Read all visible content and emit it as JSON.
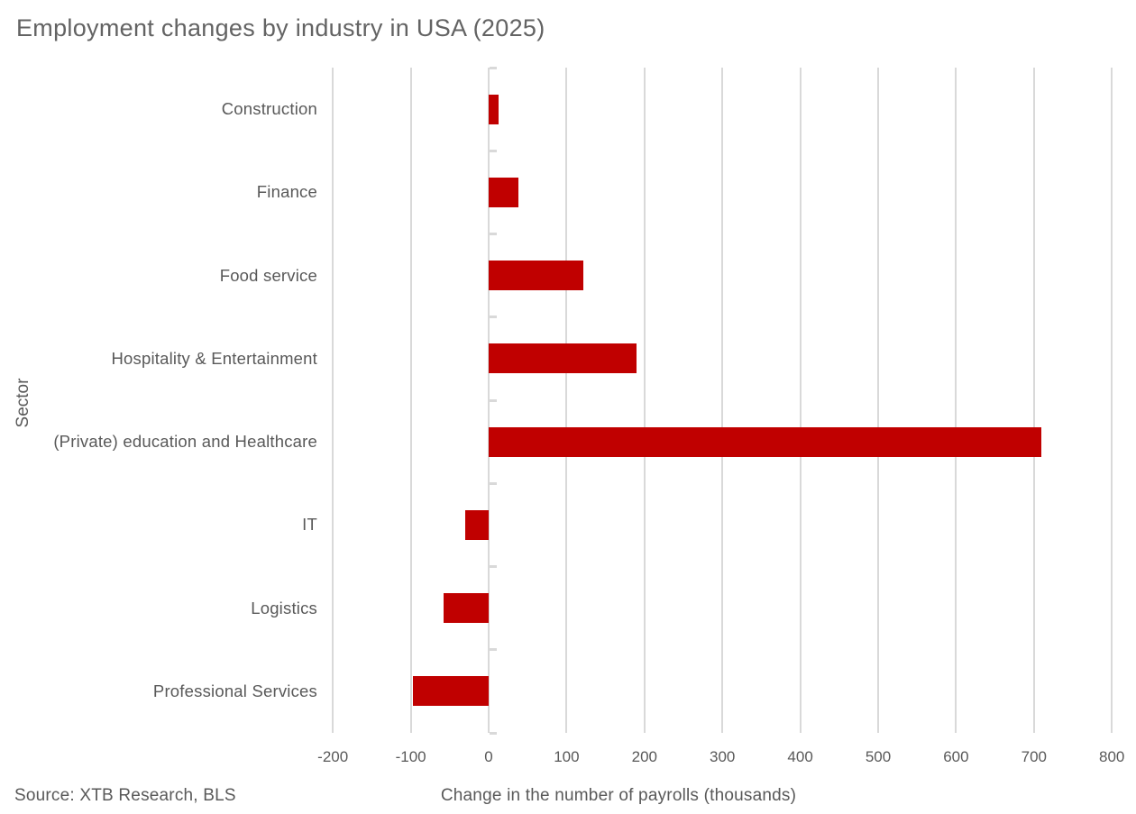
{
  "page": {
    "source": "Source: XTB Research, BLS"
  },
  "chart_data": {
    "type": "bar",
    "orientation": "horizontal",
    "title": "Employment changes by industry in USA (2025)",
    "categories": [
      "Construction",
      "Finance",
      "Food service",
      "Hospitality & Entertainment",
      "(Private) education and Healthcare",
      "IT",
      "Logistics",
      "Professional Services"
    ],
    "values": [
      13,
      38,
      122,
      190,
      710,
      -30,
      -58,
      -97
    ],
    "xlabel": "Change in the number of payrolls (thousands)",
    "ylabel": "Sector",
    "xticks": [
      -200,
      -100,
      0,
      100,
      200,
      300,
      400,
      500,
      600,
      700,
      800
    ],
    "xlim": [
      -220,
      815
    ],
    "grid": true,
    "legend": false,
    "colors": {
      "bar": "#c00000",
      "grid": "#d9d9d9",
      "text": "#595959",
      "background": "#ffffff"
    }
  }
}
